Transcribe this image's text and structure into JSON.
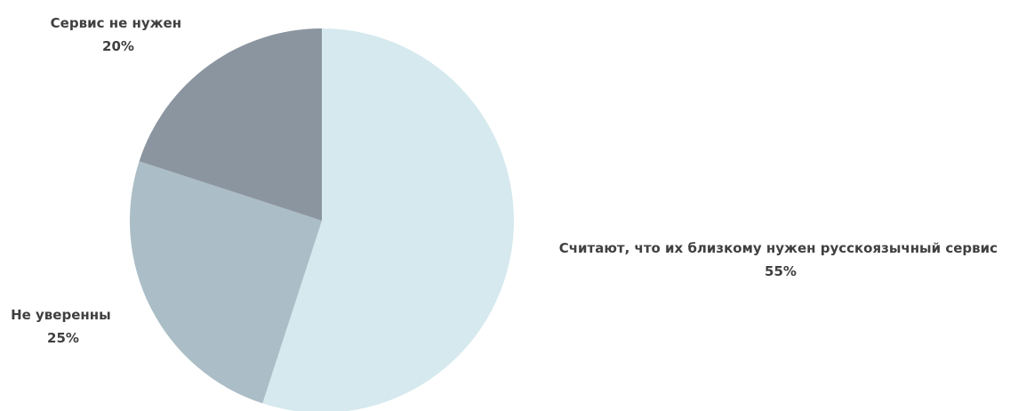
{
  "chart_data": {
    "type": "pie",
    "start_angle_deg": 0,
    "direction": "clockwise",
    "slices": [
      {
        "label": "Считают, что их близкому нужен русскоязычный сервис",
        "value": 55,
        "value_label": "55%",
        "color": "#d5e9ee"
      },
      {
        "label": "Не уверенны",
        "value": 25,
        "value_label": "25%",
        "color": "#abbdc6"
      },
      {
        "label": "Сервис не нужен",
        "value": 20,
        "value_label": "20%",
        "color": "#8b95a0"
      }
    ]
  }
}
